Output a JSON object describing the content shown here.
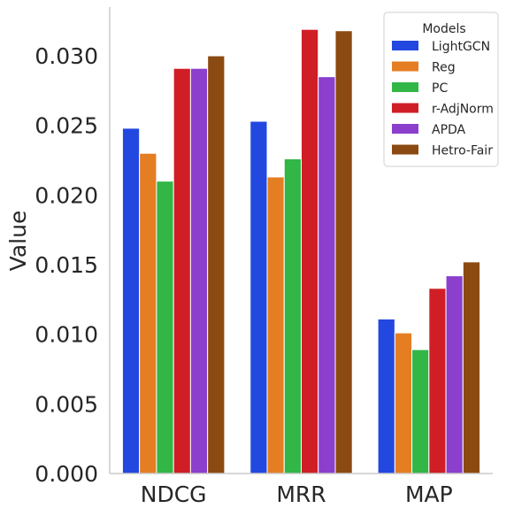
{
  "chart_data": {
    "type": "bar",
    "categories": [
      "NDCG",
      "MRR",
      "MAP"
    ],
    "ylabel": "Value",
    "xlabel": "",
    "ylim": [
      0,
      0.0335
    ],
    "yticks": [
      "0.000",
      "0.005",
      "0.010",
      "0.015",
      "0.020",
      "0.025",
      "0.030"
    ],
    "grid": false,
    "legend": {
      "title": "Models",
      "placement": "top-right"
    },
    "series": [
      {
        "name": "LightGCN",
        "color": "#2248e0",
        "values": [
          0.0248,
          0.0253,
          0.0111
        ]
      },
      {
        "name": "Reg",
        "color": "#e57e22",
        "values": [
          0.023,
          0.0213,
          0.0101
        ]
      },
      {
        "name": "PC",
        "color": "#32b646",
        "values": [
          0.021,
          0.0226,
          0.0089
        ]
      },
      {
        "name": "r-AdjNorm",
        "color": "#d01e27",
        "values": [
          0.0291,
          0.0319,
          0.0133
        ]
      },
      {
        "name": "APDA",
        "color": "#8b3fcc",
        "values": [
          0.0291,
          0.0285,
          0.0142
        ]
      },
      {
        "name": "Hetro-Fair",
        "color": "#8b4a12",
        "values": [
          0.03,
          0.0318,
          0.0152
        ]
      }
    ]
  }
}
